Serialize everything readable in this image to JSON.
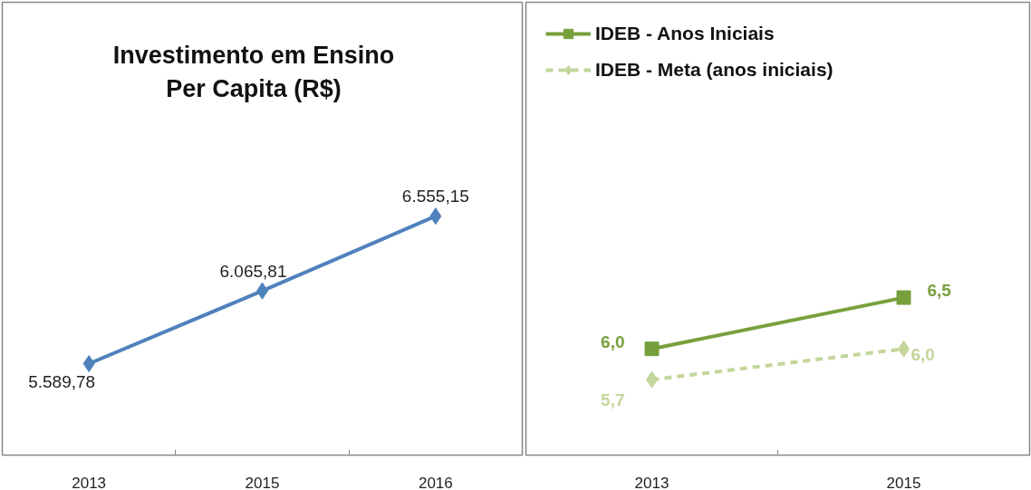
{
  "chart_data": [
    {
      "type": "line",
      "title": "Investimento em Ensino\nPer Capita (R$)",
      "categories": [
        "2013",
        "2015",
        "2016"
      ],
      "series": [
        {
          "color": "#4f81bd",
          "values": [
            5589.78,
            6065.81,
            6555.15
          ],
          "value_labels": [
            "5.589,78",
            "6.065,81",
            "6.555,15"
          ],
          "marker": "diamond",
          "line_style": "solid"
        }
      ],
      "grid": false,
      "legend": false
    },
    {
      "type": "line",
      "categories": [
        "2013",
        "2015"
      ],
      "series": [
        {
          "name": "IDEB - Anos Iniciais",
          "color": "#77a03c",
          "values": [
            6.0,
            6.5
          ],
          "value_labels": [
            "6,0",
            "6,5"
          ],
          "marker": "square",
          "line_style": "solid"
        },
        {
          "name": "IDEB - Meta (anos iniciais)",
          "color": "#c3d69b",
          "values": [
            5.7,
            6.0
          ],
          "value_labels": [
            "5,7",
            "6,0"
          ],
          "marker": "diamond",
          "line_style": "dashed"
        }
      ],
      "grid": false,
      "legend": "top left"
    }
  ]
}
